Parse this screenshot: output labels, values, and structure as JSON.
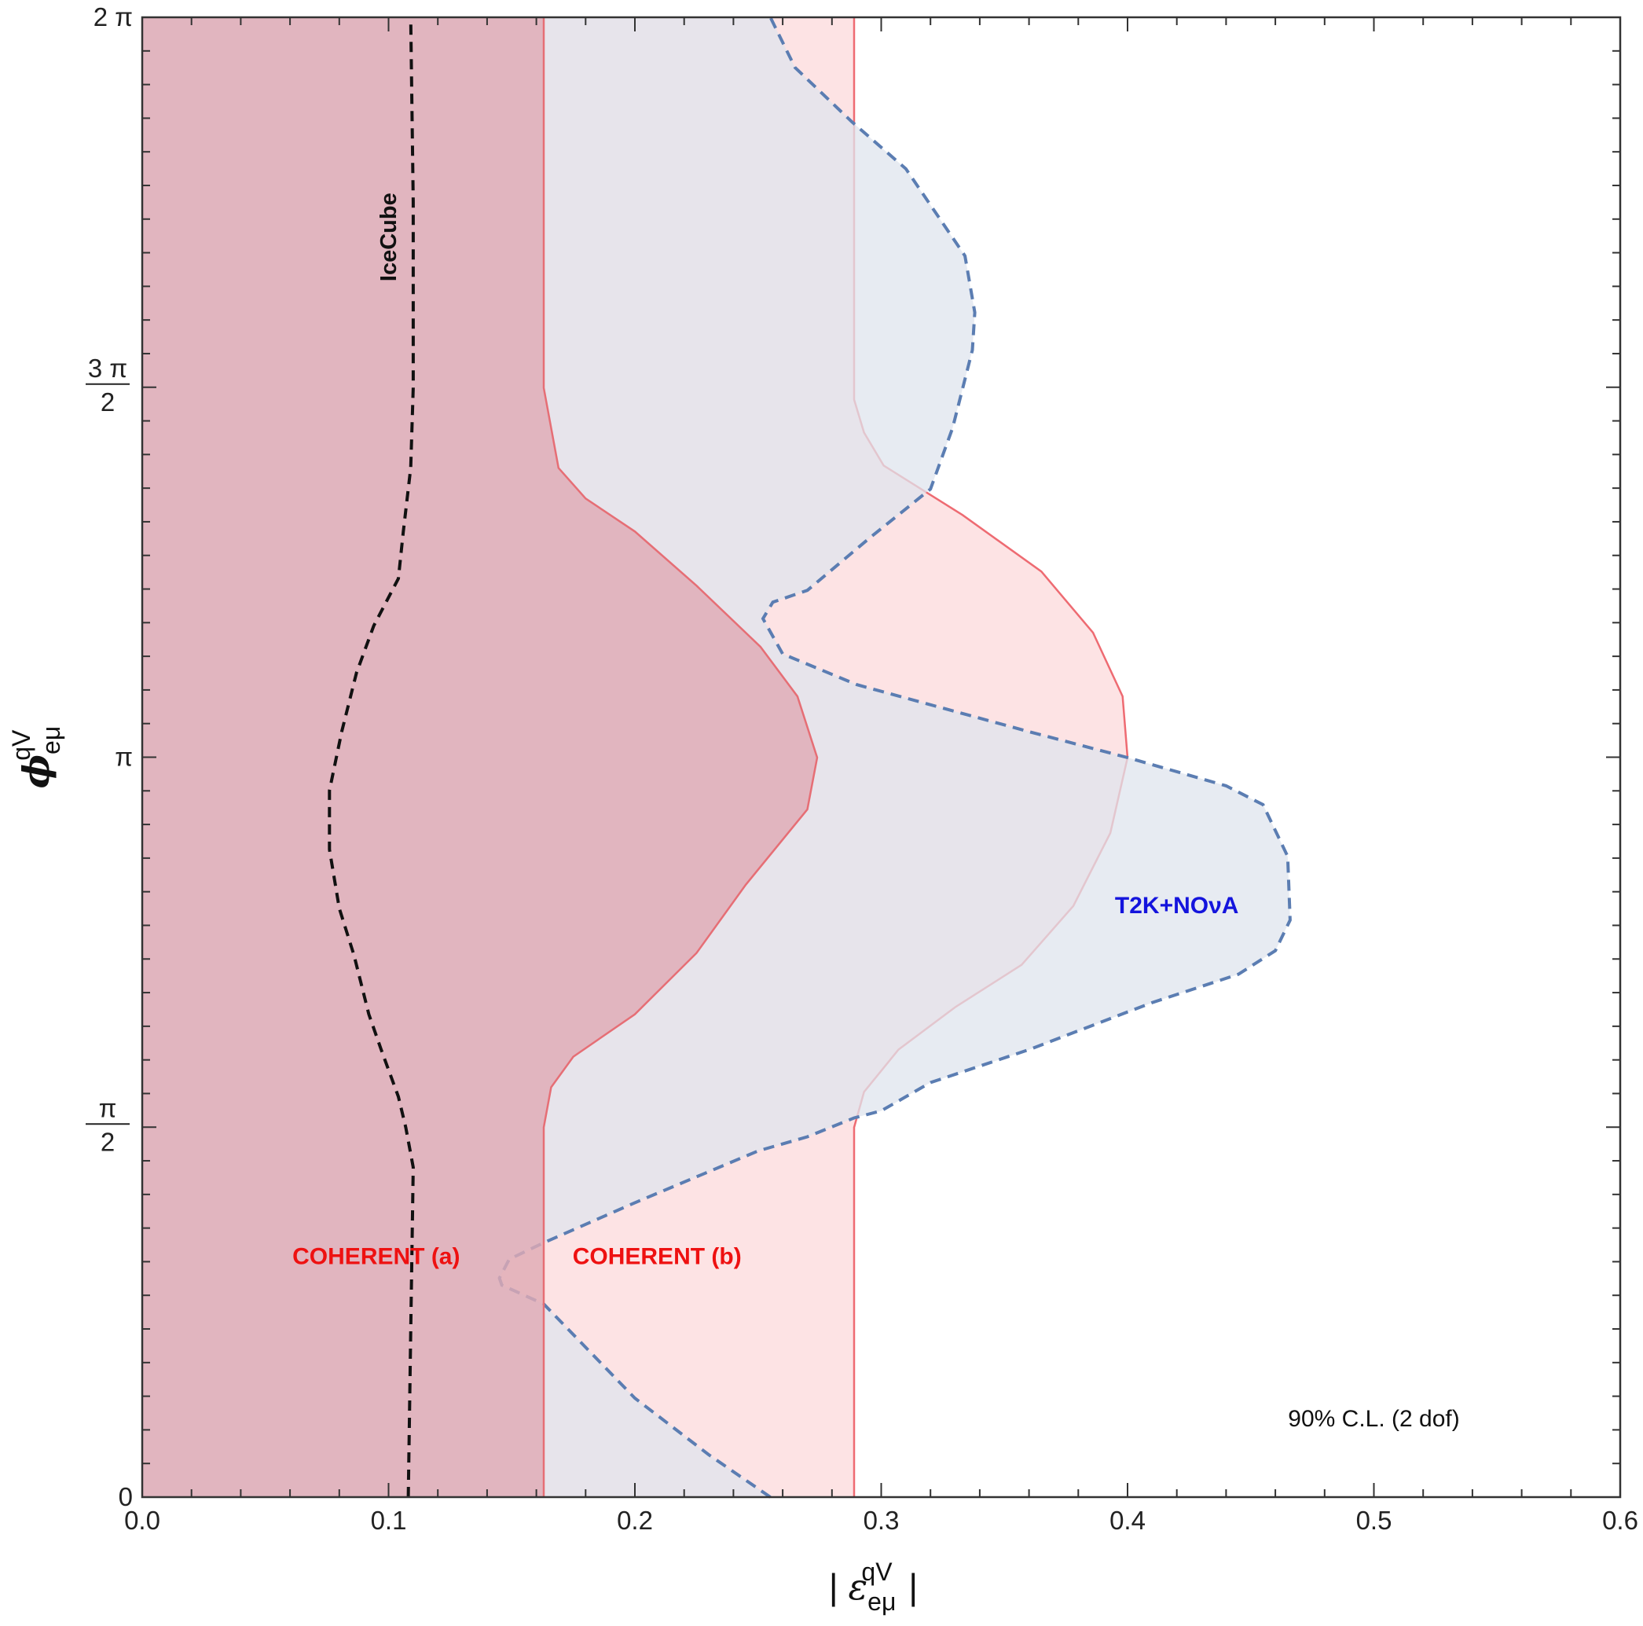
{
  "chart_data": {
    "type": "area",
    "xlabel": "| ε",
    "xlabel_sub": "eμ",
    "xlabel_sup": "qV",
    "xlabel_end": "|",
    "ylabel": "ϕ",
    "ylabel_sub": "eμ",
    "ylabel_sup": "qV",
    "xlim": [
      0,
      0.6
    ],
    "ylim": [
      0,
      6.2832
    ],
    "x_ticks": [
      {
        "value": 0.0,
        "label": "0.0"
      },
      {
        "value": 0.1,
        "label": "0.1"
      },
      {
        "value": 0.2,
        "label": "0.2"
      },
      {
        "value": 0.3,
        "label": "0.3"
      },
      {
        "value": 0.4,
        "label": "0.4"
      },
      {
        "value": 0.5,
        "label": "0.5"
      },
      {
        "value": 0.6,
        "label": "0.6"
      }
    ],
    "y_ticks": [
      {
        "value": 0,
        "label": "0"
      },
      {
        "value": 1.5708,
        "num": "π",
        "den": "2"
      },
      {
        "value": 3.1416,
        "label": "π"
      },
      {
        "value": 4.7124,
        "num": "3 π",
        "den": "2"
      },
      {
        "value": 6.2832,
        "label": "2 π"
      }
    ],
    "series": [
      {
        "name": "COHERENT (b)",
        "style": "filled",
        "fill": "#fde3e4",
        "stroke": "#ee6b72",
        "boundary": [
          [
            0.289,
            0
          ],
          [
            0.289,
            1.57
          ],
          [
            0.293,
            1.72
          ],
          [
            0.307,
            1.9
          ],
          [
            0.33,
            2.08
          ],
          [
            0.357,
            2.26
          ],
          [
            0.378,
            2.51
          ],
          [
            0.393,
            2.82
          ],
          [
            0.4,
            3.14
          ],
          [
            0.398,
            3.4
          ],
          [
            0.386,
            3.67
          ],
          [
            0.365,
            3.93
          ],
          [
            0.333,
            4.17
          ],
          [
            0.301,
            4.38
          ],
          [
            0.293,
            4.52
          ],
          [
            0.289,
            4.66
          ],
          [
            0.289,
            6.2832
          ]
        ]
      },
      {
        "name": "T2K+NOνA",
        "style": "dashed",
        "fill": "#dfe4ee",
        "stroke": "#5b7db2",
        "boundary": [
          [
            0.255,
            0
          ],
          [
            0.23,
            0.18
          ],
          [
            0.2,
            0.42
          ],
          [
            0.163,
            0.82
          ],
          [
            0.146,
            0.9
          ],
          [
            0.145,
            0.93
          ],
          [
            0.149,
            1.01
          ],
          [
            0.163,
            1.08
          ],
          [
            0.2,
            1.25
          ],
          [
            0.25,
            1.47
          ],
          [
            0.27,
            1.53
          ],
          [
            0.289,
            1.61
          ],
          [
            0.3,
            1.64
          ],
          [
            0.32,
            1.76
          ],
          [
            0.36,
            1.9
          ],
          [
            0.41,
            2.1
          ],
          [
            0.445,
            2.22
          ],
          [
            0.46,
            2.32
          ],
          [
            0.466,
            2.45
          ],
          [
            0.465,
            2.72
          ],
          [
            0.455,
            2.94
          ],
          [
            0.44,
            3.02
          ],
          [
            0.4,
            3.14
          ],
          [
            0.36,
            3.25
          ],
          [
            0.29,
            3.45
          ],
          [
            0.26,
            3.58
          ],
          [
            0.252,
            3.73
          ],
          [
            0.256,
            3.8
          ],
          [
            0.27,
            3.85
          ],
          [
            0.295,
            4.07
          ],
          [
            0.32,
            4.28
          ],
          [
            0.329,
            4.54
          ],
          [
            0.337,
            4.87
          ],
          [
            0.338,
            5.03
          ],
          [
            0.334,
            5.27
          ],
          [
            0.31,
            5.64
          ],
          [
            0.288,
            5.84
          ],
          [
            0.265,
            6.07
          ],
          [
            0.255,
            6.2832
          ]
        ]
      },
      {
        "name": "COHERENT (a)",
        "style": "filled",
        "fill": "#dfabb4",
        "stroke": "#e66e75",
        "boundary": [
          [
            0.163,
            0
          ],
          [
            0.163,
            1.57
          ],
          [
            0.166,
            1.74
          ],
          [
            0.175,
            1.87
          ],
          [
            0.2,
            2.05
          ],
          [
            0.225,
            2.31
          ],
          [
            0.245,
            2.6
          ],
          [
            0.27,
            2.92
          ],
          [
            0.274,
            3.14
          ],
          [
            0.266,
            3.4
          ],
          [
            0.251,
            3.61
          ],
          [
            0.225,
            3.87
          ],
          [
            0.2,
            4.1
          ],
          [
            0.18,
            4.24
          ],
          [
            0.169,
            4.37
          ],
          [
            0.163,
            4.71
          ],
          [
            0.163,
            6.2832
          ]
        ]
      },
      {
        "name": "IceCube",
        "style": "dashed-line",
        "stroke": "#111111",
        "points": [
          [
            0.108,
            0
          ],
          [
            0.109,
            0.7
          ],
          [
            0.11,
            1.4
          ],
          [
            0.107,
            1.57
          ],
          [
            0.104,
            1.7
          ],
          [
            0.097,
            1.9
          ],
          [
            0.092,
            2.05
          ],
          [
            0.086,
            2.3
          ],
          [
            0.08,
            2.5
          ],
          [
            0.076,
            2.75
          ],
          [
            0.076,
            3.0
          ],
          [
            0.081,
            3.25
          ],
          [
            0.087,
            3.5
          ],
          [
            0.094,
            3.7
          ],
          [
            0.104,
            3.9
          ],
          [
            0.106,
            4.1
          ],
          [
            0.109,
            4.37
          ],
          [
            0.11,
            4.71
          ],
          [
            0.11,
            5.5
          ],
          [
            0.109,
            6.2832
          ]
        ]
      }
    ],
    "annotations": [
      {
        "text": "COHERENT (a)",
        "x": 0.095,
        "y": 0.99,
        "color": "#ee1111"
      },
      {
        "text": "COHERENT (b)",
        "x": 0.209,
        "y": 0.99,
        "color": "#ee1111"
      },
      {
        "text": "T2K+NOνA",
        "x": 0.42,
        "y": 2.48,
        "color": "#1414dd"
      },
      {
        "text": "IceCube",
        "x": 0.103,
        "y": 5.35,
        "color": "#111111",
        "rotate": -90
      },
      {
        "text": "90% C.L. (2 dof)",
        "x": 0.5,
        "y": 0.3,
        "color": "#111111"
      }
    ]
  }
}
